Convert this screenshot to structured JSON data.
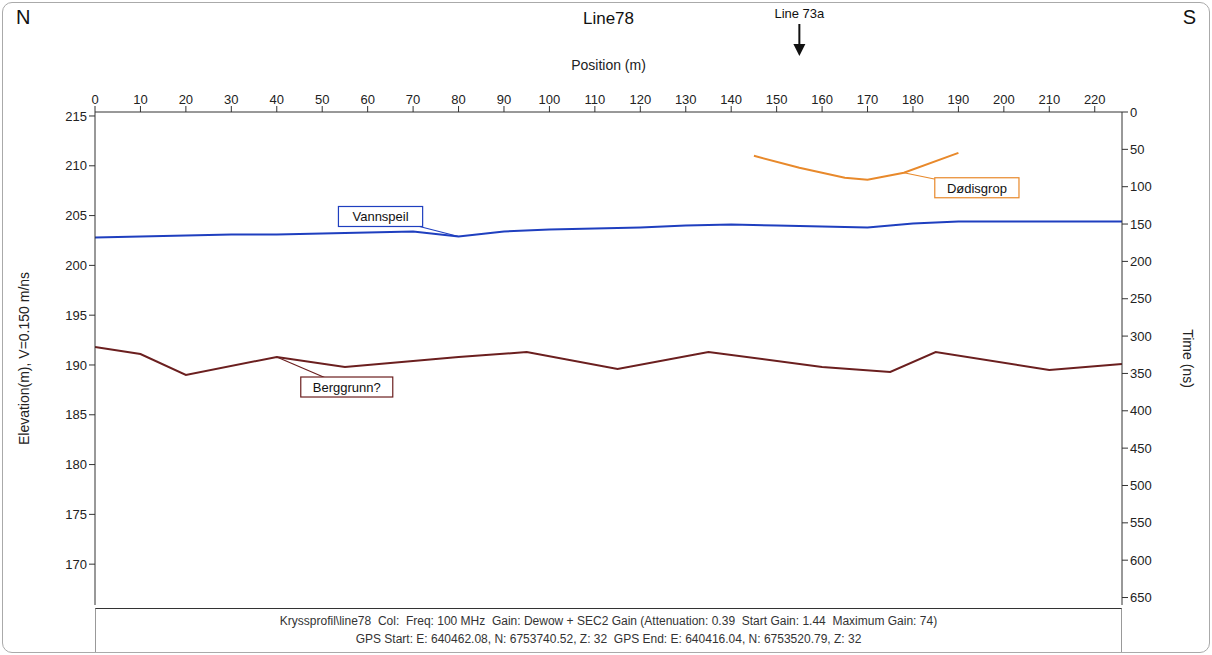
{
  "chart_data": {
    "type": "line",
    "title": "Line78",
    "direction_labels": [
      "N",
      "S"
    ],
    "x_label": "Position (m)",
    "y_label": "Elevation(m), V=0.150 m/ns",
    "y2_label": "Time (ns)",
    "xlim": [
      0,
      226
    ],
    "xticks": [
      0,
      10,
      20,
      30,
      40,
      50,
      60,
      70,
      80,
      90,
      100,
      110,
      120,
      130,
      140,
      150,
      160,
      170,
      180,
      190,
      200,
      210,
      220
    ],
    "ylim": [
      165.9,
      215.4
    ],
    "yticks": [
      170,
      175,
      180,
      185,
      190,
      195,
      200,
      205,
      210,
      215
    ],
    "y2lim": [
      660,
      0
    ],
    "y2ticks": [
      0,
      50,
      100,
      150,
      200,
      250,
      300,
      350,
      400,
      450,
      500,
      550,
      600,
      650
    ],
    "grid": false,
    "annotations": [
      {
        "text": "Line 73a",
        "x": 155
      }
    ],
    "series": [
      {
        "name": "Vannspeil",
        "color": "#1f3fbf",
        "x": [
          0,
          10,
          20,
          30,
          40,
          50,
          60,
          70,
          80,
          90,
          100,
          110,
          120,
          130,
          140,
          150,
          160,
          170,
          180,
          190,
          200,
          210,
          220,
          226
        ],
        "values": [
          202.8,
          202.9,
          203.0,
          203.1,
          203.1,
          203.2,
          203.3,
          203.4,
          202.9,
          203.4,
          203.6,
          203.7,
          203.8,
          204.0,
          204.1,
          204.0,
          203.9,
          203.8,
          204.2,
          204.4,
          204.4,
          204.4,
          204.4,
          204.4
        ]
      },
      {
        "name": "Berggrunn?",
        "color": "#6b1f1f",
        "x": [
          0,
          10,
          20,
          40,
          55,
          80,
          95,
          115,
          135,
          160,
          175,
          185,
          210,
          226
        ],
        "values": [
          191.8,
          191.1,
          189.0,
          190.8,
          189.8,
          190.8,
          191.3,
          189.6,
          191.3,
          189.8,
          189.3,
          191.3,
          189.5,
          190.1
        ]
      },
      {
        "name": "Dødisgrop",
        "color": "#e8892b",
        "x": [
          145,
          155,
          165,
          170,
          178,
          190
        ],
        "values": [
          211.0,
          209.8,
          208.8,
          208.6,
          209.3,
          211.3
        ]
      }
    ],
    "caption": [
      "Kryssprofil\\line78  Col:  Freq: 100 MHz  Gain: Dewow + SEC2 Gain (Attenuation: 0.39  Start Gain: 1.44  Maximum Gain: 74)",
      "GPS Start: E: 640462.08, N: 6753740.52, Z: 32  GPS End: E: 640416.04, N: 6753520.79, Z: 32"
    ]
  }
}
